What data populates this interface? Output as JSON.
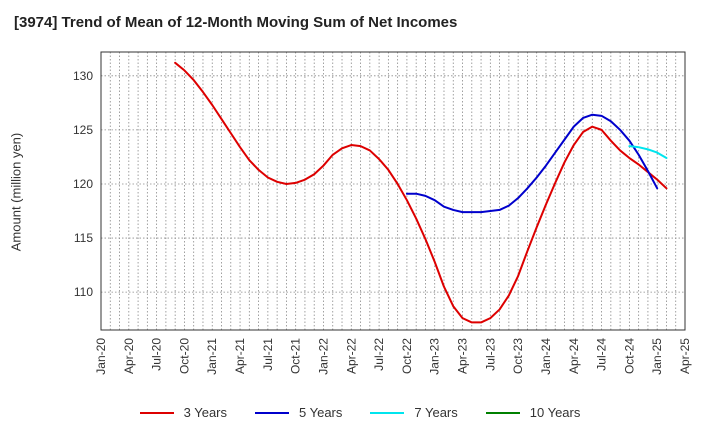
{
  "title": "[3974]  Trend of Mean of 12-Month Moving Sum of Net Incomes",
  "chart_data": {
    "type": "line",
    "title": "[3974]  Trend of Mean of 12-Month Moving Sum of Net Incomes",
    "ylabel": "Amount (million yen)",
    "xlabel": "",
    "ylim": [
      106.5,
      132.2
    ],
    "yticks": [
      110,
      115,
      120,
      125,
      130
    ],
    "x_tick_labels": [
      "Jan-20",
      "Apr-20",
      "Jul-20",
      "Oct-20",
      "Jan-21",
      "Apr-21",
      "Jul-21",
      "Oct-21",
      "Jan-22",
      "Apr-22",
      "Jul-22",
      "Oct-22",
      "Jan-23",
      "Apr-23",
      "Jul-23",
      "Oct-23",
      "Jan-24",
      "Apr-24",
      "Jul-24",
      "Oct-24",
      "Jan-25",
      "Apr-25"
    ],
    "x_range": [
      "2020-01",
      "2025-04"
    ],
    "grid": true,
    "legend_position": "bottom",
    "series": [
      {
        "name": "3 Years",
        "color": "#dd0000",
        "points": [
          [
            "2020-09",
            131.2
          ],
          [
            "2020-10",
            130.5
          ],
          [
            "2020-11",
            129.6
          ],
          [
            "2020-12",
            128.5
          ],
          [
            "2021-01",
            127.3
          ],
          [
            "2021-02",
            126.0
          ],
          [
            "2021-03",
            124.7
          ],
          [
            "2021-04",
            123.4
          ],
          [
            "2021-05",
            122.2
          ],
          [
            "2021-06",
            121.3
          ],
          [
            "2021-07",
            120.6
          ],
          [
            "2021-08",
            120.2
          ],
          [
            "2021-09",
            120.0
          ],
          [
            "2021-10",
            120.1
          ],
          [
            "2021-11",
            120.4
          ],
          [
            "2021-12",
            120.9
          ],
          [
            "2022-01",
            121.7
          ],
          [
            "2022-02",
            122.7
          ],
          [
            "2022-03",
            123.3
          ],
          [
            "2022-04",
            123.6
          ],
          [
            "2022-05",
            123.5
          ],
          [
            "2022-06",
            123.1
          ],
          [
            "2022-07",
            122.3
          ],
          [
            "2022-08",
            121.3
          ],
          [
            "2022-09",
            120.0
          ],
          [
            "2022-10",
            118.5
          ],
          [
            "2022-11",
            116.8
          ],
          [
            "2022-12",
            114.9
          ],
          [
            "2023-01",
            112.8
          ],
          [
            "2023-02",
            110.5
          ],
          [
            "2023-03",
            108.7
          ],
          [
            "2023-04",
            107.6
          ],
          [
            "2023-05",
            107.2
          ],
          [
            "2023-06",
            107.2
          ],
          [
            "2023-07",
            107.6
          ],
          [
            "2023-08",
            108.4
          ],
          [
            "2023-09",
            109.7
          ],
          [
            "2023-10",
            111.5
          ],
          [
            "2023-11",
            113.8
          ],
          [
            "2023-12",
            116.0
          ],
          [
            "2024-01",
            118.1
          ],
          [
            "2024-02",
            120.1
          ],
          [
            "2024-03",
            122.0
          ],
          [
            "2024-04",
            123.6
          ],
          [
            "2024-05",
            124.8
          ],
          [
            "2024-06",
            125.3
          ],
          [
            "2024-07",
            125.0
          ],
          [
            "2024-08",
            124.0
          ],
          [
            "2024-09",
            123.1
          ],
          [
            "2024-10",
            122.4
          ],
          [
            "2024-11",
            121.8
          ],
          [
            "2024-12",
            121.1
          ],
          [
            "2025-01",
            120.4
          ],
          [
            "2025-02",
            119.6
          ]
        ]
      },
      {
        "name": "5 Years",
        "color": "#0000cc",
        "points": [
          [
            "2022-10",
            119.1
          ],
          [
            "2022-11",
            119.1
          ],
          [
            "2022-12",
            118.9
          ],
          [
            "2023-01",
            118.5
          ],
          [
            "2023-02",
            117.9
          ],
          [
            "2023-03",
            117.6
          ],
          [
            "2023-04",
            117.4
          ],
          [
            "2023-05",
            117.4
          ],
          [
            "2023-06",
            117.4
          ],
          [
            "2023-07",
            117.5
          ],
          [
            "2023-08",
            117.6
          ],
          [
            "2023-09",
            118.0
          ],
          [
            "2023-10",
            118.7
          ],
          [
            "2023-11",
            119.6
          ],
          [
            "2023-12",
            120.6
          ],
          [
            "2024-01",
            121.7
          ],
          [
            "2024-02",
            122.9
          ],
          [
            "2024-03",
            124.1
          ],
          [
            "2024-04",
            125.3
          ],
          [
            "2024-05",
            126.1
          ],
          [
            "2024-06",
            126.4
          ],
          [
            "2024-07",
            126.3
          ],
          [
            "2024-08",
            125.8
          ],
          [
            "2024-09",
            125.0
          ],
          [
            "2024-10",
            124.0
          ],
          [
            "2024-11",
            122.7
          ],
          [
            "2024-12",
            121.2
          ],
          [
            "2025-01",
            119.6
          ]
        ]
      },
      {
        "name": "7 Years",
        "color": "#00e5ee",
        "points": [
          [
            "2024-10",
            123.5
          ],
          [
            "2024-11",
            123.4
          ],
          [
            "2024-12",
            123.2
          ],
          [
            "2025-01",
            122.9
          ],
          [
            "2025-02",
            122.4
          ]
        ]
      },
      {
        "name": "10 Years",
        "color": "#008000",
        "points": []
      }
    ]
  }
}
